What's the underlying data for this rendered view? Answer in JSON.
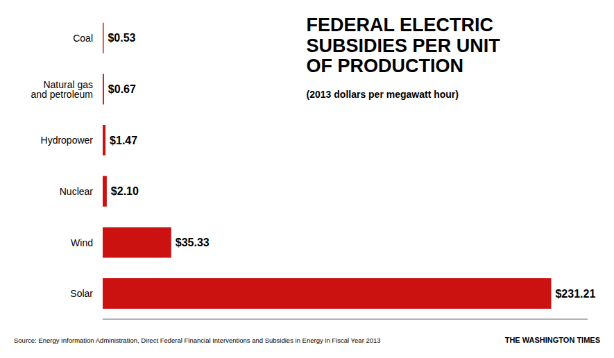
{
  "chart_data": {
    "type": "bar",
    "orientation": "horizontal",
    "title": "FEDERAL ELECTRIC\nSUBSIDIES PER UNIT\nOF PRODUCTION",
    "subtitle": "(2013 dollars per megawatt hour)",
    "annotations": [
      "Source: Energy Information Administration, Direct Federal Financial Interventions and Subsidies in Energy in Fiscal Year 2013",
      "THE WASHINGTON TIMES"
    ],
    "categories": [
      "Solar",
      "Wind",
      "Nuclear",
      "Hydropower",
      "Natural gas\nand petroleum",
      "Coal"
    ],
    "values": [
      231.21,
      35.33,
      2.1,
      1.47,
      0.67,
      0.53
    ],
    "value_labels": [
      "$231.21",
      "$35.33",
      "$2.10",
      "$1.47",
      "$0.67",
      "$0.53"
    ],
    "color": "#cc1111",
    "xlim": [
      0,
      250
    ],
    "data_labels": true,
    "tick_labels": "y",
    "grid": false
  }
}
